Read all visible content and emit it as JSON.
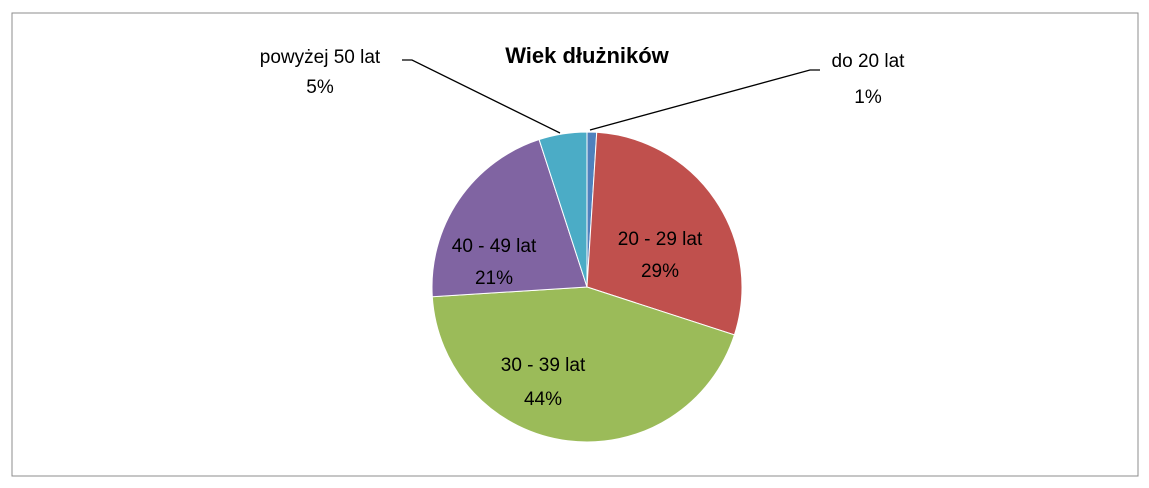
{
  "chart_data": {
    "type": "pie",
    "title": "Wiek dłużników",
    "categories": [
      "do 20 lat",
      "20 - 29 lat",
      "30 - 39 lat",
      "40 - 49 lat",
      "powyżej 50 lat"
    ],
    "values": [
      1,
      29,
      44,
      21,
      5
    ],
    "value_labels": [
      "1%",
      "29%",
      "44%",
      "21%",
      "5%"
    ],
    "colors": [
      "#4f81bd",
      "#c0504d",
      "#9bbb59",
      "#8064a2",
      "#4bacc6"
    ]
  }
}
